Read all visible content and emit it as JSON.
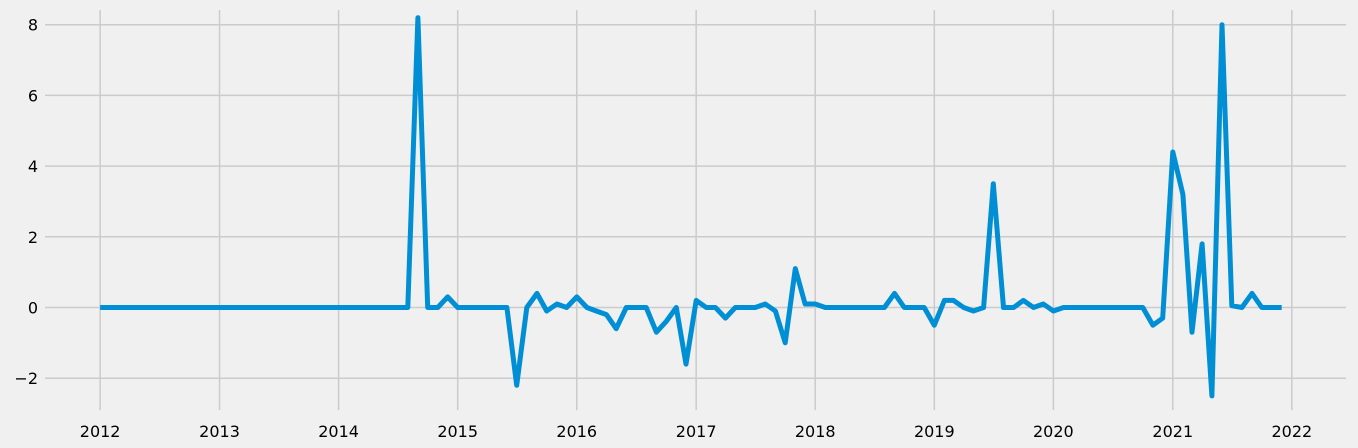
{
  "chart_data": {
    "type": "line",
    "title": "",
    "xlabel": "",
    "ylabel": "",
    "x_axis_type": "date",
    "xlim": [
      "2011-07-16",
      "2022-06-16"
    ],
    "ylim": [
      -2.9,
      8.7
    ],
    "x_ticks": [
      "2012-01-01",
      "2013-01-01",
      "2014-01-01",
      "2015-01-01",
      "2016-01-01",
      "2017-01-01",
      "2018-01-01",
      "2019-01-01",
      "2020-01-01",
      "2021-01-01",
      "2022-01-01"
    ],
    "x_tick_labels": [
      "2012",
      "2013",
      "2014",
      "2015",
      "2016",
      "2017",
      "2018",
      "2019",
      "2020",
      "2021",
      "2022"
    ],
    "y_ticks": [
      -2,
      0,
      2,
      4,
      6,
      8
    ],
    "y_tick_labels": [
      "−2",
      "0",
      "2",
      "4",
      "6",
      "8"
    ],
    "grid": true,
    "line_color": "#008fd5",
    "series": [
      {
        "start": "2012-01",
        "frequency": "monthly",
        "values": [
          0,
          0,
          0,
          0,
          0,
          0,
          0,
          0,
          0,
          0,
          0,
          0,
          0,
          0,
          0,
          0,
          0,
          0,
          0,
          0,
          0,
          0,
          0,
          0,
          0,
          0,
          0,
          0,
          0,
          0,
          0,
          0,
          8.2,
          0,
          0,
          0.3,
          0,
          0,
          0,
          0,
          0,
          0,
          -2.2,
          0,
          0.4,
          -0.1,
          0.1,
          0,
          0.3,
          0,
          -0.1,
          -0.2,
          -0.6,
          0,
          0,
          0,
          -0.7,
          -0.4,
          0,
          -1.6,
          0.2,
          0,
          0,
          -0.3,
          0,
          0,
          0,
          0.1,
          -0.1,
          -1.0,
          1.1,
          0.1,
          0.1,
          0,
          0,
          0,
          0,
          0,
          0,
          0,
          0.4,
          0,
          0,
          0,
          -0.5,
          0.2,
          0.2,
          0,
          -0.1,
          0,
          3.5,
          0,
          0,
          0.2,
          0,
          0.1,
          -0.1,
          0,
          0,
          0,
          0,
          0,
          0,
          0,
          0,
          0,
          -0.5,
          -0.3,
          4.4,
          3.2,
          -0.7,
          1.8,
          -2.5,
          8.0,
          0.05,
          0,
          0.4,
          0,
          0,
          0
        ]
      }
    ]
  }
}
